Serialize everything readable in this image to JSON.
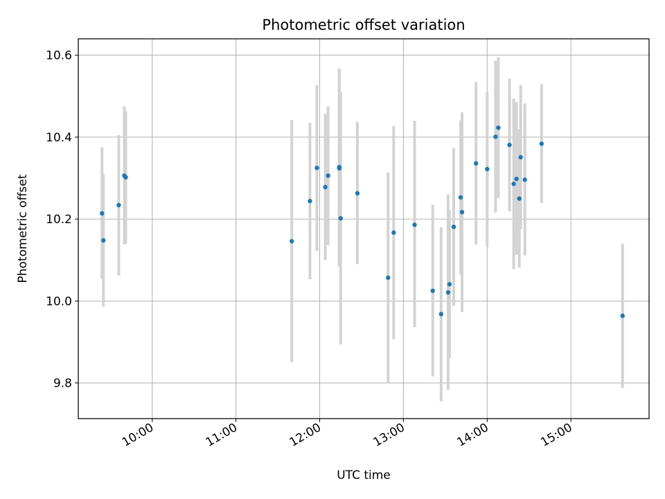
{
  "chart_data": {
    "type": "scatter",
    "title": "Photometric offset variation",
    "xlabel": "UTC time",
    "ylabel": "Photometric offset",
    "x_is_time": true,
    "xlim": [
      "09:07",
      "15:56"
    ],
    "ylim": [
      9.713,
      10.64
    ],
    "x_ticks": [
      "10:00",
      "11:00",
      "12:00",
      "13:00",
      "14:00",
      "15:00"
    ],
    "y_ticks": [
      9.8,
      10.0,
      10.2,
      10.4,
      10.6
    ],
    "y_tick_labels": [
      "9.8",
      "10.0",
      "10.2",
      "10.4",
      "10.6"
    ],
    "grid": true,
    "error_bars": true,
    "point_color": "#1f77b4",
    "errorbar_color": "#d3d3d3",
    "points": [
      {
        "x": "09:24",
        "y": 10.214,
        "ylo": 10.053,
        "yhi": 10.375
      },
      {
        "x": "09:25",
        "y": 10.148,
        "ylo": 9.986,
        "yhi": 10.31
      },
      {
        "x": "09:36",
        "y": 10.234,
        "ylo": 10.062,
        "yhi": 10.405
      },
      {
        "x": "09:40",
        "y": 10.306,
        "ylo": 10.138,
        "yhi": 10.475
      },
      {
        "x": "09:41",
        "y": 10.302,
        "ylo": 10.14,
        "yhi": 10.463
      },
      {
        "x": "11:40",
        "y": 10.146,
        "ylo": 9.851,
        "yhi": 10.442
      },
      {
        "x": "11:53",
        "y": 10.244,
        "ylo": 10.053,
        "yhi": 10.435
      },
      {
        "x": "11:58",
        "y": 10.325,
        "ylo": 10.122,
        "yhi": 10.527
      },
      {
        "x": "12:04",
        "y": 10.278,
        "ylo": 10.1,
        "yhi": 10.457
      },
      {
        "x": "12:06",
        "y": 10.306,
        "ylo": 10.137,
        "yhi": 10.475
      },
      {
        "x": "12:14",
        "y": 10.327,
        "ylo": 10.085,
        "yhi": 10.568
      },
      {
        "x": "12:14",
        "y": 10.324,
        "ylo": 10.084,
        "yhi": 10.564
      },
      {
        "x": "12:15",
        "y": 10.202,
        "ylo": 9.894,
        "yhi": 10.51
      },
      {
        "x": "12:27",
        "y": 10.263,
        "ylo": 10.09,
        "yhi": 10.437
      },
      {
        "x": "12:49",
        "y": 10.057,
        "ylo": 9.8,
        "yhi": 10.314
      },
      {
        "x": "12:53",
        "y": 10.167,
        "ylo": 9.907,
        "yhi": 10.427
      },
      {
        "x": "13:08",
        "y": 10.186,
        "ylo": 9.936,
        "yhi": 10.44
      },
      {
        "x": "13:21",
        "y": 10.025,
        "ylo": 9.816,
        "yhi": 10.235
      },
      {
        "x": "13:27",
        "y": 9.968,
        "ylo": 9.755,
        "yhi": 10.18
      },
      {
        "x": "13:32",
        "y": 10.021,
        "ylo": 9.783,
        "yhi": 10.26
      },
      {
        "x": "13:33",
        "y": 10.041,
        "ylo": 9.86,
        "yhi": 10.222
      },
      {
        "x": "13:36",
        "y": 10.181,
        "ylo": 9.988,
        "yhi": 10.374
      },
      {
        "x": "13:41",
        "y": 10.253,
        "ylo": 10.065,
        "yhi": 10.441
      },
      {
        "x": "13:42",
        "y": 10.217,
        "ylo": 9.973,
        "yhi": 10.461
      },
      {
        "x": "13:52",
        "y": 10.336,
        "ylo": 10.138,
        "yhi": 10.535
      },
      {
        "x": "14:00",
        "y": 10.322,
        "ylo": 10.133,
        "yhi": 10.51
      },
      {
        "x": "14:06",
        "y": 10.401,
        "ylo": 10.216,
        "yhi": 10.587
      },
      {
        "x": "14:08",
        "y": 10.423,
        "ylo": 10.251,
        "yhi": 10.595
      },
      {
        "x": "14:16",
        "y": 10.381,
        "ylo": 10.219,
        "yhi": 10.543
      },
      {
        "x": "14:19",
        "y": 10.286,
        "ylo": 10.078,
        "yhi": 10.494
      },
      {
        "x": "14:21",
        "y": 10.298,
        "ylo": 10.113,
        "yhi": 10.486
      },
      {
        "x": "14:23",
        "y": 10.25,
        "ylo": 10.082,
        "yhi": 10.419
      },
      {
        "x": "14:24",
        "y": 10.351,
        "ylo": 10.175,
        "yhi": 10.527
      },
      {
        "x": "14:27",
        "y": 10.296,
        "ylo": 10.111,
        "yhi": 10.482
      },
      {
        "x": "14:39",
        "y": 10.384,
        "ylo": 10.239,
        "yhi": 10.529
      },
      {
        "x": "15:37",
        "y": 9.964,
        "ylo": 9.788,
        "yhi": 10.14
      }
    ]
  }
}
